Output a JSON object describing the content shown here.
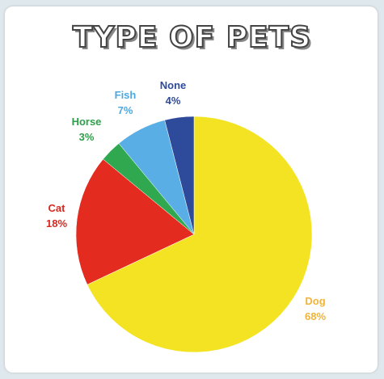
{
  "chart_data": {
    "type": "pie",
    "title": "TYPE OF PETS",
    "slices": [
      {
        "label": "Dog",
        "value": 68,
        "value_label": "68%",
        "color": "#f4e322"
      },
      {
        "label": "Cat",
        "value": 18,
        "value_label": "18%",
        "color": "#e42b20"
      },
      {
        "label": "Horse",
        "value": 3,
        "value_label": "3%",
        "color": "#2fa84f"
      },
      {
        "label": "Fish",
        "value": 7,
        "value_label": "7%",
        "color": "#5aaee6"
      },
      {
        "label": "None",
        "value": 4,
        "value_label": "4%",
        "color": "#2e4a9a"
      }
    ],
    "label_colors": {
      "Dog": "#f0b43a",
      "Cat": "#d62a20",
      "Horse": "#2f9e4a",
      "Fish": "#4ea8e0",
      "None": "#2e4a9a"
    }
  }
}
